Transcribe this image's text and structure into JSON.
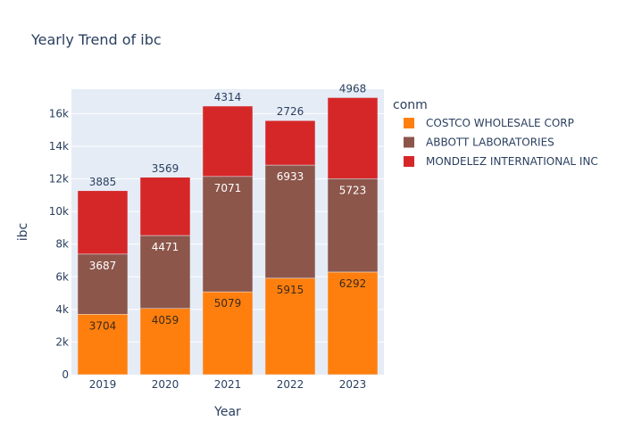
{
  "chart_data": {
    "type": "bar",
    "stacked": true,
    "title": "Yearly Trend of ibc",
    "xlabel": "Year",
    "ylabel": "ibc",
    "categories": [
      "2019",
      "2020",
      "2021",
      "2022",
      "2023"
    ],
    "ylim": [
      0,
      17500
    ],
    "yticks": [
      0,
      2000,
      4000,
      6000,
      8000,
      10000,
      12000,
      14000,
      16000
    ],
    "ytick_labels": [
      "0",
      "2k",
      "4k",
      "6k",
      "8k",
      "10k",
      "12k",
      "14k",
      "16k"
    ],
    "grid": true,
    "legend_title": "conm",
    "legend_position": "right",
    "series": [
      {
        "name": "COSTCO WHOLESALE CORP",
        "color": "#FF7F0E",
        "label_color": "#3b2a1a",
        "values": [
          3704,
          4059,
          5079,
          5915,
          6292
        ]
      },
      {
        "name": "ABBOTT LABORATORIES",
        "color": "#8C564B",
        "label_color": "#ffffff",
        "values": [
          3687,
          4471,
          7071,
          6933,
          5723
        ]
      },
      {
        "name": "MONDELEZ INTERNATIONAL INC",
        "color": "#D62728",
        "label_color": "#2a3f5f",
        "values": [
          3885,
          3569,
          4314,
          2726,
          4968
        ]
      }
    ]
  }
}
